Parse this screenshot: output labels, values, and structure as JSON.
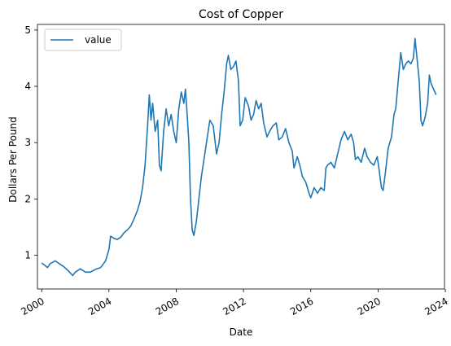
{
  "chart_data": {
    "type": "line",
    "title": "Cost of Copper",
    "xlabel": "Date",
    "ylabel": "Dollars Per Pound",
    "xlim": [
      1999.75,
      2023.95
    ],
    "ylim": [
      0.4,
      5.1
    ],
    "x_ticks": [
      2000,
      2004,
      2008,
      2012,
      2016,
      2020,
      2024
    ],
    "y_ticks": [
      1,
      2,
      3,
      4,
      5
    ],
    "grid": false,
    "legend": "top-left",
    "series": [
      {
        "name": "value",
        "color": "#1f77b4",
        "points": [
          [
            2000.0,
            0.86
          ],
          [
            2000.2,
            0.82
          ],
          [
            2000.35,
            0.78
          ],
          [
            2000.5,
            0.85
          ],
          [
            2000.8,
            0.9
          ],
          [
            2001.0,
            0.86
          ],
          [
            2001.3,
            0.8
          ],
          [
            2001.6,
            0.72
          ],
          [
            2001.85,
            0.64
          ],
          [
            2002.0,
            0.7
          ],
          [
            2002.3,
            0.76
          ],
          [
            2002.6,
            0.7
          ],
          [
            2002.9,
            0.7
          ],
          [
            2003.2,
            0.75
          ],
          [
            2003.5,
            0.78
          ],
          [
            2003.8,
            0.9
          ],
          [
            2004.0,
            1.1
          ],
          [
            2004.1,
            1.34
          ],
          [
            2004.3,
            1.3
          ],
          [
            2004.5,
            1.28
          ],
          [
            2004.7,
            1.32
          ],
          [
            2004.9,
            1.4
          ],
          [
            2005.1,
            1.45
          ],
          [
            2005.3,
            1.52
          ],
          [
            2005.5,
            1.65
          ],
          [
            2005.7,
            1.8
          ],
          [
            2005.85,
            1.95
          ],
          [
            2006.0,
            2.2
          ],
          [
            2006.15,
            2.6
          ],
          [
            2006.3,
            3.3
          ],
          [
            2006.4,
            3.85
          ],
          [
            2006.5,
            3.4
          ],
          [
            2006.6,
            3.7
          ],
          [
            2006.75,
            3.2
          ],
          [
            2006.9,
            3.4
          ],
          [
            2007.0,
            2.6
          ],
          [
            2007.1,
            2.5
          ],
          [
            2007.25,
            3.2
          ],
          [
            2007.4,
            3.6
          ],
          [
            2007.55,
            3.3
          ],
          [
            2007.7,
            3.5
          ],
          [
            2007.85,
            3.2
          ],
          [
            2008.0,
            3.0
          ],
          [
            2008.15,
            3.6
          ],
          [
            2008.3,
            3.9
          ],
          [
            2008.45,
            3.7
          ],
          [
            2008.55,
            3.95
          ],
          [
            2008.65,
            3.5
          ],
          [
            2008.75,
            3.0
          ],
          [
            2008.85,
            2.0
          ],
          [
            2008.95,
            1.45
          ],
          [
            2009.05,
            1.35
          ],
          [
            2009.2,
            1.6
          ],
          [
            2009.35,
            2.0
          ],
          [
            2009.5,
            2.4
          ],
          [
            2009.7,
            2.8
          ],
          [
            2009.9,
            3.2
          ],
          [
            2010.0,
            3.4
          ],
          [
            2010.2,
            3.3
          ],
          [
            2010.4,
            2.8
          ],
          [
            2010.55,
            3.0
          ],
          [
            2010.7,
            3.5
          ],
          [
            2010.85,
            3.9
          ],
          [
            2011.0,
            4.4
          ],
          [
            2011.1,
            4.55
          ],
          [
            2011.25,
            4.3
          ],
          [
            2011.4,
            4.35
          ],
          [
            2011.55,
            4.45
          ],
          [
            2011.7,
            4.1
          ],
          [
            2011.8,
            3.3
          ],
          [
            2011.95,
            3.4
          ],
          [
            2012.1,
            3.8
          ],
          [
            2012.3,
            3.65
          ],
          [
            2012.45,
            3.4
          ],
          [
            2012.6,
            3.5
          ],
          [
            2012.75,
            3.75
          ],
          [
            2012.9,
            3.6
          ],
          [
            2013.05,
            3.7
          ],
          [
            2013.2,
            3.35
          ],
          [
            2013.4,
            3.1
          ],
          [
            2013.55,
            3.2
          ],
          [
            2013.75,
            3.3
          ],
          [
            2013.95,
            3.35
          ],
          [
            2014.1,
            3.05
          ],
          [
            2014.3,
            3.1
          ],
          [
            2014.5,
            3.25
          ],
          [
            2014.7,
            3.0
          ],
          [
            2014.9,
            2.85
          ],
          [
            2015.0,
            2.55
          ],
          [
            2015.2,
            2.75
          ],
          [
            2015.35,
            2.6
          ],
          [
            2015.5,
            2.4
          ],
          [
            2015.7,
            2.3
          ],
          [
            2015.9,
            2.1
          ],
          [
            2016.0,
            2.02
          ],
          [
            2016.2,
            2.2
          ],
          [
            2016.4,
            2.1
          ],
          [
            2016.6,
            2.2
          ],
          [
            2016.8,
            2.15
          ],
          [
            2016.9,
            2.55
          ],
          [
            2017.0,
            2.6
          ],
          [
            2017.2,
            2.65
          ],
          [
            2017.4,
            2.55
          ],
          [
            2017.6,
            2.8
          ],
          [
            2017.8,
            3.05
          ],
          [
            2018.0,
            3.2
          ],
          [
            2018.2,
            3.05
          ],
          [
            2018.4,
            3.15
          ],
          [
            2018.55,
            3.0
          ],
          [
            2018.65,
            2.7
          ],
          [
            2018.8,
            2.75
          ],
          [
            2019.0,
            2.65
          ],
          [
            2019.2,
            2.9
          ],
          [
            2019.35,
            2.75
          ],
          [
            2019.55,
            2.65
          ],
          [
            2019.75,
            2.6
          ],
          [
            2019.95,
            2.75
          ],
          [
            2020.05,
            2.55
          ],
          [
            2020.2,
            2.2
          ],
          [
            2020.3,
            2.15
          ],
          [
            2020.45,
            2.5
          ],
          [
            2020.6,
            2.9
          ],
          [
            2020.8,
            3.1
          ],
          [
            2020.95,
            3.5
          ],
          [
            2021.05,
            3.6
          ],
          [
            2021.2,
            4.1
          ],
          [
            2021.35,
            4.6
          ],
          [
            2021.5,
            4.3
          ],
          [
            2021.65,
            4.4
          ],
          [
            2021.8,
            4.45
          ],
          [
            2021.95,
            4.4
          ],
          [
            2022.1,
            4.5
          ],
          [
            2022.2,
            4.85
          ],
          [
            2022.3,
            4.55
          ],
          [
            2022.45,
            4.1
          ],
          [
            2022.55,
            3.4
          ],
          [
            2022.65,
            3.3
          ],
          [
            2022.8,
            3.45
          ],
          [
            2022.95,
            3.7
          ],
          [
            2023.05,
            4.2
          ],
          [
            2023.15,
            4.05
          ],
          [
            2023.3,
            3.95
          ],
          [
            2023.45,
            3.85
          ]
        ]
      }
    ]
  }
}
